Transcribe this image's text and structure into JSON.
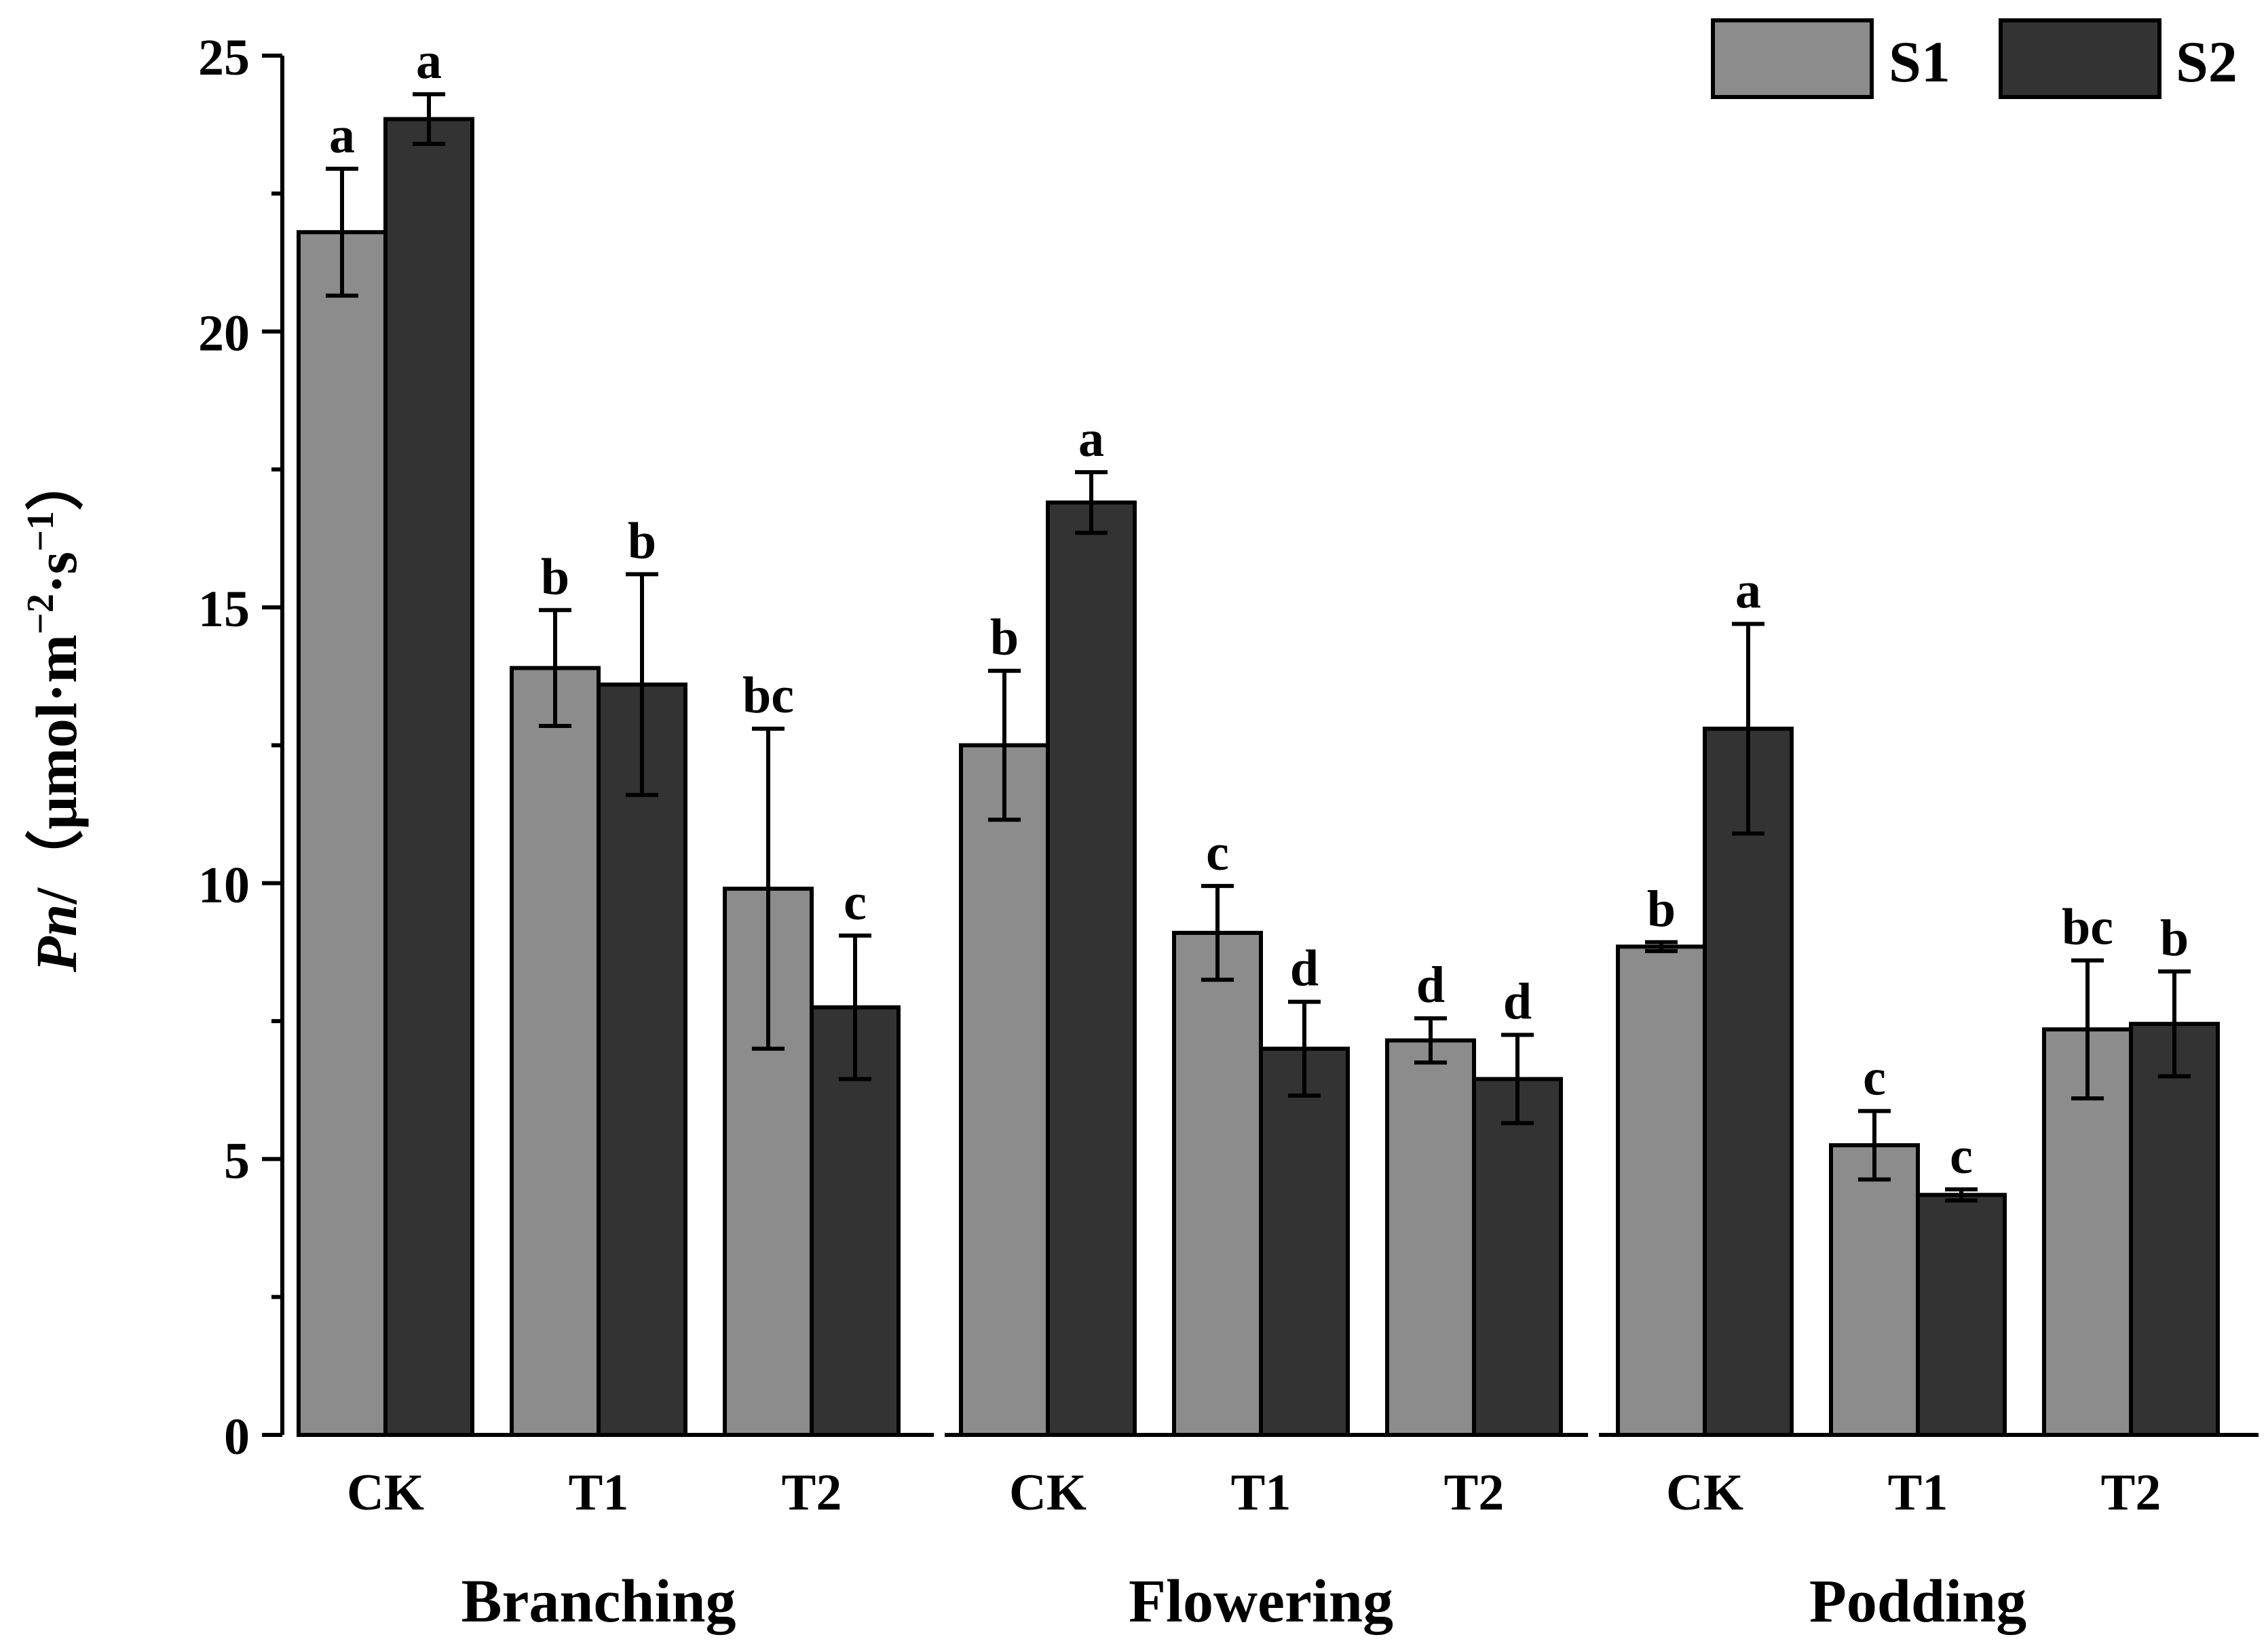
{
  "chart_data": {
    "type": "bar",
    "title": "",
    "ylabel_italic": "Pn",
    "ylabel_rest": "/（μmol·m",
    "ylabel_sup1": "−2",
    "ylabel_mid": "·s",
    "ylabel_sup2": "−1",
    "ylabel_close": "）",
    "ylim": [
      0,
      25
    ],
    "yticks": [
      0,
      5,
      10,
      15,
      20,
      25
    ],
    "ytick_labels": [
      "0",
      "5",
      "10",
      "15",
      "20",
      "25"
    ],
    "legend_position": "top-right",
    "series": [
      {
        "name": "S1",
        "color": "#8c8c8c"
      },
      {
        "name": "S2",
        "color": "#333333"
      }
    ],
    "groups": [
      {
        "name": "Branching",
        "categories": [
          {
            "label": "CK",
            "bars": [
              {
                "value": 21.8,
                "err": 1.15,
                "letter": "a"
              },
              {
                "value": 23.85,
                "err": 0.45,
                "letter": "a"
              }
            ]
          },
          {
            "label": "T1",
            "bars": [
              {
                "value": 13.9,
                "err": 1.05,
                "letter": "b"
              },
              {
                "value": 13.6,
                "err": 2.0,
                "letter": "b"
              }
            ]
          },
          {
            "label": "T2",
            "bars": [
              {
                "value": 9.9,
                "err": 2.9,
                "letter": "bc"
              },
              {
                "value": 7.75,
                "err": 1.3,
                "letter": "c"
              }
            ]
          }
        ]
      },
      {
        "name": "Flowering",
        "categories": [
          {
            "label": "CK",
            "bars": [
              {
                "value": 12.5,
                "err": 1.35,
                "letter": "b"
              },
              {
                "value": 16.9,
                "err": 0.55,
                "letter": "a"
              }
            ]
          },
          {
            "label": "T1",
            "bars": [
              {
                "value": 9.1,
                "err": 0.85,
                "letter": "c"
              },
              {
                "value": 7.0,
                "err": 0.85,
                "letter": "d"
              }
            ]
          },
          {
            "label": "T2",
            "bars": [
              {
                "value": 7.15,
                "err": 0.4,
                "letter": "d"
              },
              {
                "value": 6.45,
                "err": 0.8,
                "letter": "d"
              }
            ]
          }
        ]
      },
      {
        "name": "Podding",
        "categories": [
          {
            "label": "CK",
            "bars": [
              {
                "value": 8.85,
                "err": 0.08,
                "letter": "b"
              },
              {
                "value": 12.8,
                "err": 1.9,
                "letter": "a"
              }
            ]
          },
          {
            "label": "T1",
            "bars": [
              {
                "value": 5.25,
                "err": 0.62,
                "letter": "c"
              },
              {
                "value": 4.35,
                "err": 0.1,
                "letter": "c"
              }
            ]
          },
          {
            "label": "T2",
            "bars": [
              {
                "value": 7.35,
                "err": 1.25,
                "letter": "bc"
              },
              {
                "value": 7.45,
                "err": 0.95,
                "letter": "b"
              }
            ]
          }
        ]
      }
    ]
  }
}
